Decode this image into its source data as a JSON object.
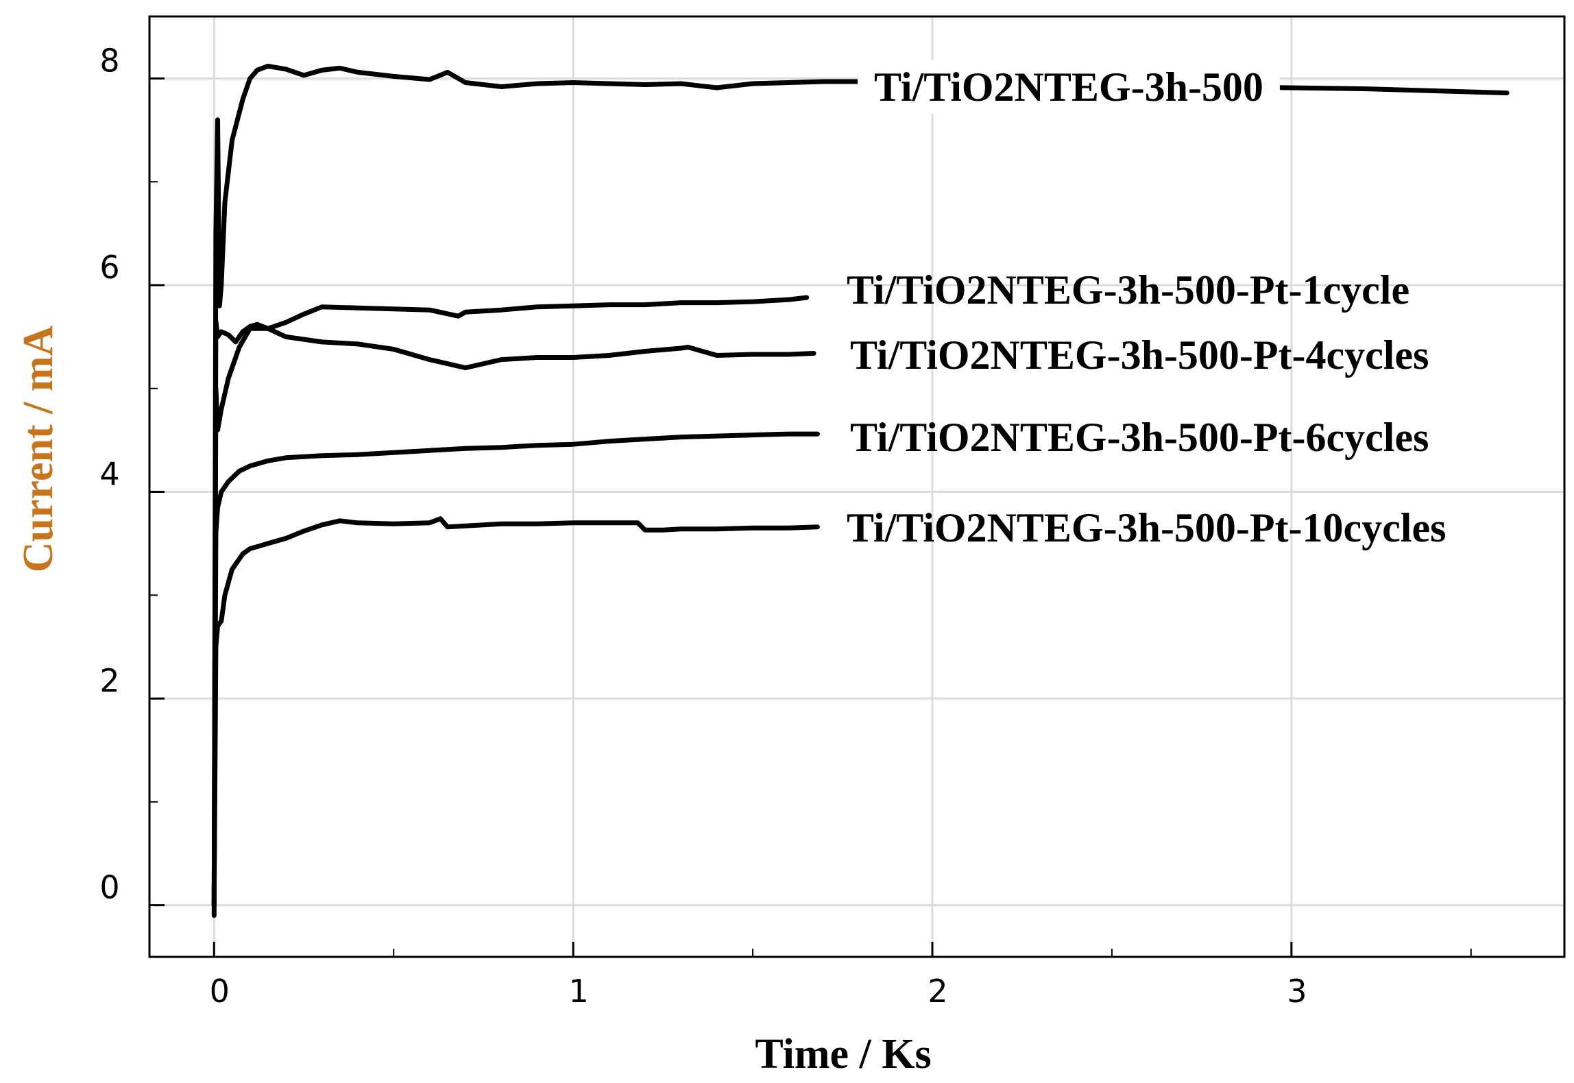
{
  "chart_data": {
    "type": "line",
    "title": "",
    "xlabel": "Time  / Ks",
    "ylabel": "Current  / mA",
    "xlim": [
      -0.18,
      3.76
    ],
    "ylim": [
      -0.5,
      8.6
    ],
    "x_ticks": [
      0,
      1,
      2,
      3
    ],
    "x_minor_ticks": [
      0.5,
      1.5,
      2.5,
      3.5
    ],
    "y_ticks": [
      0,
      2,
      4,
      6,
      8
    ],
    "y_minor_ticks": [
      1,
      3,
      5,
      7
    ],
    "grid": true,
    "legend": "labels placed beside line ends",
    "colors": {
      "line": "#000000",
      "grid": "#dcdcdc",
      "ylabel": "#c8741a",
      "frame": "#000000"
    },
    "series": [
      {
        "name": "Ti/TiO2NTEG-3h-500",
        "x": [
          0,
          0.005,
          0.01,
          0.015,
          0.02,
          0.03,
          0.05,
          0.08,
          0.1,
          0.12,
          0.15,
          0.2,
          0.25,
          0.3,
          0.35,
          0.4,
          0.5,
          0.6,
          0.65,
          0.7,
          0.8,
          0.9,
          1.0,
          1.1,
          1.2,
          1.3,
          1.4,
          1.5,
          1.6,
          1.7,
          1.78,
          3.2,
          3.6
        ],
        "y": [
          -0.1,
          6.5,
          7.6,
          5.8,
          6.0,
          6.8,
          7.4,
          7.8,
          8.0,
          8.08,
          8.12,
          8.09,
          8.03,
          8.08,
          8.1,
          8.06,
          8.02,
          7.99,
          8.06,
          7.96,
          7.92,
          7.95,
          7.96,
          7.95,
          7.94,
          7.95,
          7.91,
          7.95,
          7.96,
          7.97,
          7.97,
          7.9,
          7.86
        ]
      },
      {
        "name": "Ti/TiO2NTEG-3h-500-Pt-1cycle",
        "x": [
          0,
          0.005,
          0.01,
          0.02,
          0.04,
          0.07,
          0.1,
          0.15,
          0.2,
          0.25,
          0.3,
          0.4,
          0.5,
          0.6,
          0.68,
          0.7,
          0.8,
          0.9,
          1.0,
          1.1,
          1.2,
          1.3,
          1.4,
          1.5,
          1.6,
          1.65
        ],
        "y": [
          0.0,
          5.0,
          4.6,
          4.8,
          5.1,
          5.4,
          5.58,
          5.58,
          5.64,
          5.72,
          5.79,
          5.78,
          5.77,
          5.76,
          5.7,
          5.74,
          5.76,
          5.79,
          5.8,
          5.81,
          5.81,
          5.83,
          5.83,
          5.84,
          5.86,
          5.88
        ]
      },
      {
        "name": "Ti/TiO2NTEG-3h-500-Pt-4cycles",
        "x": [
          0,
          0.005,
          0.01,
          0.02,
          0.04,
          0.06,
          0.08,
          0.1,
          0.12,
          0.15,
          0.2,
          0.3,
          0.4,
          0.5,
          0.6,
          0.7,
          0.75,
          0.8,
          0.9,
          1.0,
          1.1,
          1.2,
          1.3,
          1.32,
          1.4,
          1.5,
          1.6,
          1.67
        ],
        "y": [
          0.0,
          5.65,
          5.5,
          5.55,
          5.52,
          5.45,
          5.55,
          5.6,
          5.62,
          5.58,
          5.5,
          5.45,
          5.43,
          5.38,
          5.28,
          5.2,
          5.24,
          5.28,
          5.3,
          5.3,
          5.32,
          5.36,
          5.39,
          5.4,
          5.32,
          5.33,
          5.33,
          5.34
        ]
      },
      {
        "name": "Ti/TiO2NTEG-3h-500-Pt-6cycles",
        "x": [
          0,
          0.005,
          0.01,
          0.02,
          0.04,
          0.07,
          0.1,
          0.15,
          0.2,
          0.3,
          0.4,
          0.5,
          0.6,
          0.7,
          0.8,
          0.9,
          1.0,
          1.1,
          1.2,
          1.3,
          1.4,
          1.5,
          1.6,
          1.68
        ],
        "y": [
          0.0,
          3.6,
          3.85,
          4.0,
          4.1,
          4.2,
          4.25,
          4.3,
          4.33,
          4.35,
          4.36,
          4.38,
          4.4,
          4.42,
          4.43,
          4.45,
          4.46,
          4.49,
          4.51,
          4.53,
          4.54,
          4.55,
          4.56,
          4.56
        ]
      },
      {
        "name": "Ti/TiO2NTEG-3h-500-Pt-10cycles",
        "x": [
          0,
          0.005,
          0.01,
          0.02,
          0.03,
          0.05,
          0.08,
          0.1,
          0.15,
          0.2,
          0.25,
          0.3,
          0.35,
          0.4,
          0.5,
          0.6,
          0.63,
          0.65,
          0.7,
          0.8,
          0.9,
          1.0,
          1.1,
          1.18,
          1.2,
          1.25,
          1.3,
          1.4,
          1.5,
          1.6,
          1.68
        ],
        "y": [
          0.0,
          2.5,
          2.7,
          2.75,
          3.0,
          3.25,
          3.4,
          3.45,
          3.5,
          3.55,
          3.62,
          3.68,
          3.72,
          3.7,
          3.69,
          3.7,
          3.74,
          3.66,
          3.67,
          3.69,
          3.69,
          3.7,
          3.7,
          3.7,
          3.63,
          3.63,
          3.64,
          3.64,
          3.65,
          3.65,
          3.66
        ]
      }
    ]
  }
}
